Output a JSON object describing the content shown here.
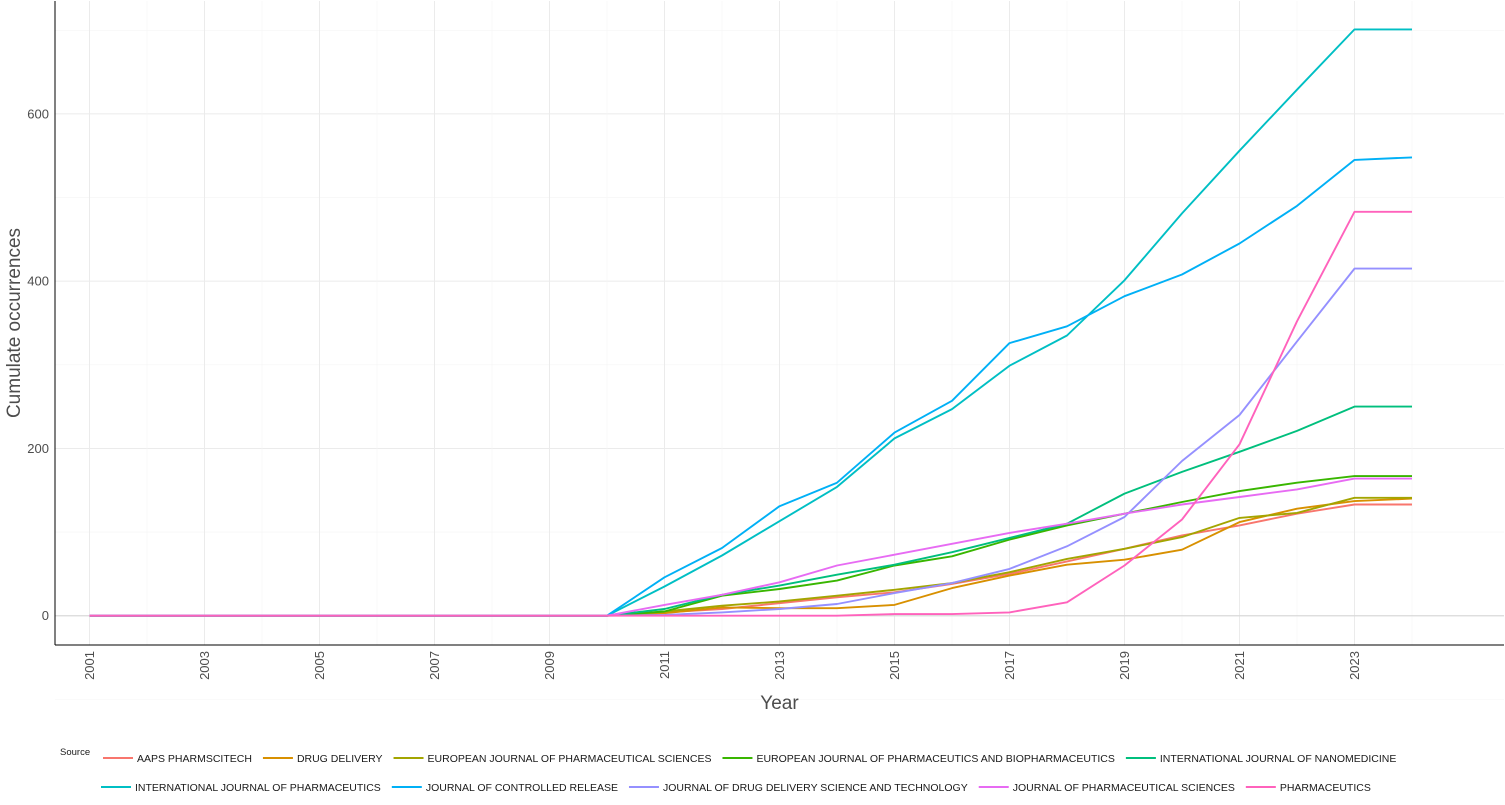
{
  "chart_data": {
    "type": "line",
    "xlabel": "Year",
    "ylabel": "Cumulate occurrences",
    "xlim": [
      2000.4,
      2025.6
    ],
    "ylim": [
      -35,
      735
    ],
    "x_ticks": [
      2001,
      2003,
      2005,
      2007,
      2009,
      2011,
      2013,
      2015,
      2017,
      2019,
      2021,
      2023
    ],
    "y_ticks": [
      0,
      200,
      400,
      600
    ],
    "grid": true,
    "legend_title": "Source",
    "legend_position": "bottom",
    "x": [
      2001,
      2010,
      2011,
      2012,
      2013,
      2014,
      2015,
      2016,
      2017,
      2018,
      2019,
      2020,
      2021,
      2022,
      2023,
      2024
    ],
    "series": [
      {
        "name": "AAPS PHARMSCITECH",
        "color": "#F8766D",
        "values": [
          0,
          0,
          4,
          8,
          15,
          22,
          28,
          38,
          50,
          65,
          80,
          96,
          108,
          122,
          133,
          133
        ]
      },
      {
        "name": "DRUG DELIVERY",
        "color": "#D89000",
        "values": [
          0,
          0,
          3,
          10,
          9,
          9,
          13,
          33,
          48,
          61,
          67,
          79,
          112,
          128,
          137,
          140
        ]
      },
      {
        "name": "EUROPEAN JOURNAL OF PHARMACEUTICAL SCIENCES",
        "color": "#A3A500",
        "values": [
          0,
          0,
          5,
          12,
          17,
          24,
          31,
          39,
          52,
          68,
          80,
          94,
          117,
          123,
          141,
          141
        ]
      },
      {
        "name": "EUROPEAN JOURNAL OF PHARMACEUTICS AND BIOPHARMACEUTICS",
        "color": "#39B600",
        "values": [
          0,
          0,
          5,
          24,
          32,
          42,
          60,
          71,
          91,
          108,
          122,
          136,
          149,
          159,
          167,
          167
        ]
      },
      {
        "name": "INTERNATIONAL JOURNAL OF NANOMEDICINE",
        "color": "#00BF7D",
        "values": [
          0,
          0,
          8,
          25,
          36,
          49,
          61,
          76,
          93,
          110,
          146,
          172,
          196,
          221,
          250,
          250
        ]
      },
      {
        "name": "INTERNATIONAL JOURNAL OF PHARMACEUTICS",
        "color": "#00BFC4",
        "values": [
          0,
          0,
          35,
          72,
          113,
          154,
          212,
          247,
          299,
          335,
          401,
          481,
          556,
          629,
          701,
          701
        ]
      },
      {
        "name": "JOURNAL OF CONTROLLED RELEASE",
        "color": "#00B0F6",
        "values": [
          0,
          0,
          46,
          81,
          131,
          159,
          219,
          257,
          326,
          346,
          382,
          408,
          445,
          490,
          545,
          548
        ]
      },
      {
        "name": "JOURNAL OF DRUG DELIVERY SCIENCE AND TECHNOLOGY",
        "color": "#9590FF",
        "values": [
          0,
          0,
          1,
          4,
          8,
          14,
          27,
          39,
          56,
          83,
          118,
          185,
          240,
          328,
          415,
          415
        ]
      },
      {
        "name": "JOURNAL OF PHARMACEUTICAL SCIENCES",
        "color": "#E76BF3",
        "values": [
          0,
          0,
          13,
          25,
          40,
          60,
          73,
          86,
          99,
          110,
          122,
          133,
          142,
          151,
          164,
          164
        ]
      },
      {
        "name": "PHARMACEUTICS",
        "color": "#FF62BC",
        "values": [
          0,
          0,
          0,
          0,
          0,
          0,
          2,
          2,
          4,
          16,
          60,
          115,
          205,
          352,
          483,
          483
        ]
      }
    ]
  }
}
